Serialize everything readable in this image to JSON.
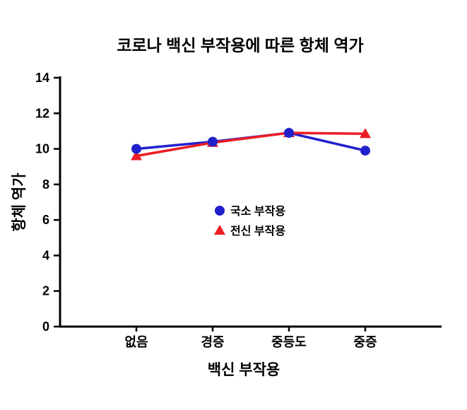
{
  "chart_data": {
    "type": "line",
    "title": "코로나 백신 부작용에 따른 항체 역가",
    "xlabel": "백신 부작용",
    "ylabel": "항체 역가",
    "categories": [
      "없음",
      "경증",
      "중등도",
      "중증"
    ],
    "ylim": [
      0,
      14
    ],
    "ytick_step": 2,
    "grid": false,
    "legend_position": "inside-center",
    "series": [
      {
        "name": "국소 부작용",
        "color": "#2020cc",
        "marker": "circle",
        "values": [
          10.0,
          10.4,
          10.9,
          9.9
        ]
      },
      {
        "name": "전신 부작용",
        "color": "#ed1c24",
        "marker": "triangle",
        "values": [
          9.6,
          10.35,
          10.9,
          10.85
        ]
      }
    ]
  }
}
